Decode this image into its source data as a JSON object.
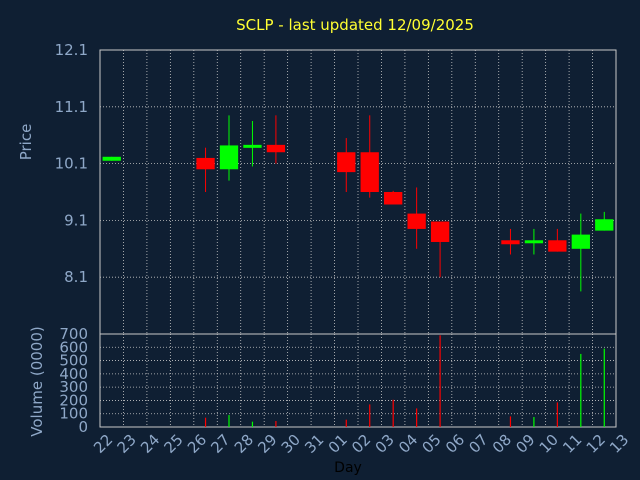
{
  "chart_data": {
    "type": "candlestick",
    "title": "SCLP - last updated 12/09/2025",
    "xlabel": "Day",
    "colors": {
      "background": "#0f1f33",
      "plot_border": "#c8c8c8",
      "grid": "#c8c8c8",
      "title": "#ffff33",
      "axis_text": "#8fa8c8",
      "up": "#00ff00",
      "down": "#ff0000"
    },
    "x_ticks": [
      "22",
      "23",
      "24",
      "25",
      "26",
      "27",
      "28",
      "29",
      "30",
      "31",
      "01",
      "02",
      "03",
      "04",
      "05",
      "06",
      "07",
      "08",
      "09",
      "10",
      "11",
      "12",
      "13"
    ],
    "price_panel": {
      "ylabel": "Price",
      "ylim": [
        7.1,
        12.1
      ],
      "ticks": [
        "12.1",
        "11.1",
        "10.1",
        "9.1",
        "8.1"
      ],
      "candles": [
        {
          "day": "22",
          "open": 10.15,
          "high": 10.22,
          "low": 10.15,
          "close": 10.22
        },
        {
          "day": "26",
          "open": 10.2,
          "high": 10.38,
          "low": 9.6,
          "close": 10.0
        },
        {
          "day": "27",
          "open": 10.0,
          "high": 10.95,
          "low": 9.8,
          "close": 10.42
        },
        {
          "day": "28",
          "open": 10.4,
          "high": 10.85,
          "low": 10.05,
          "close": 10.43
        },
        {
          "day": "29",
          "open": 10.43,
          "high": 10.95,
          "low": 10.1,
          "close": 10.3
        },
        {
          "day": "01",
          "open": 10.3,
          "high": 10.55,
          "low": 9.6,
          "close": 9.95
        },
        {
          "day": "02",
          "open": 10.3,
          "high": 10.95,
          "low": 9.5,
          "close": 9.6
        },
        {
          "day": "03",
          "open": 9.6,
          "high": 9.62,
          "low": 9.38,
          "close": 9.38
        },
        {
          "day": "04",
          "open": 9.22,
          "high": 9.68,
          "low": 8.6,
          "close": 8.95
        },
        {
          "day": "05",
          "open": 9.08,
          "high": 9.08,
          "low": 8.1,
          "close": 8.72
        },
        {
          "day": "08",
          "open": 8.75,
          "high": 8.95,
          "low": 8.5,
          "close": 8.68
        },
        {
          "day": "09",
          "open": 8.7,
          "high": 8.95,
          "low": 8.5,
          "close": 8.75
        },
        {
          "day": "10",
          "open": 8.75,
          "high": 8.95,
          "low": 8.55,
          "close": 8.55
        },
        {
          "day": "11",
          "open": 8.6,
          "high": 9.22,
          "low": 7.85,
          "close": 8.85
        },
        {
          "day": "12",
          "open": 8.92,
          "high": 9.25,
          "low": 8.92,
          "close": 9.12
        }
      ]
    },
    "volume_panel": {
      "ylabel": "Volume (0000)",
      "ylim": [
        0,
        700
      ],
      "ticks": [
        "700",
        "600",
        "500",
        "400",
        "300",
        "200",
        "100",
        "0"
      ],
      "bars": [
        {
          "day": "26",
          "value": 70,
          "direction": "down"
        },
        {
          "day": "27",
          "value": 90,
          "direction": "up"
        },
        {
          "day": "28",
          "value": 40,
          "direction": "up"
        },
        {
          "day": "29",
          "value": 45,
          "direction": "down"
        },
        {
          "day": "01",
          "value": 55,
          "direction": "down"
        },
        {
          "day": "02",
          "value": 170,
          "direction": "down"
        },
        {
          "day": "03",
          "value": 205,
          "direction": "down"
        },
        {
          "day": "04",
          "value": 140,
          "direction": "down"
        },
        {
          "day": "05",
          "value": 690,
          "direction": "down"
        },
        {
          "day": "08",
          "value": 80,
          "direction": "down"
        },
        {
          "day": "09",
          "value": 75,
          "direction": "up"
        },
        {
          "day": "10",
          "value": 185,
          "direction": "down"
        },
        {
          "day": "11",
          "value": 550,
          "direction": "up"
        },
        {
          "day": "12",
          "value": 590,
          "direction": "up"
        }
      ]
    }
  }
}
